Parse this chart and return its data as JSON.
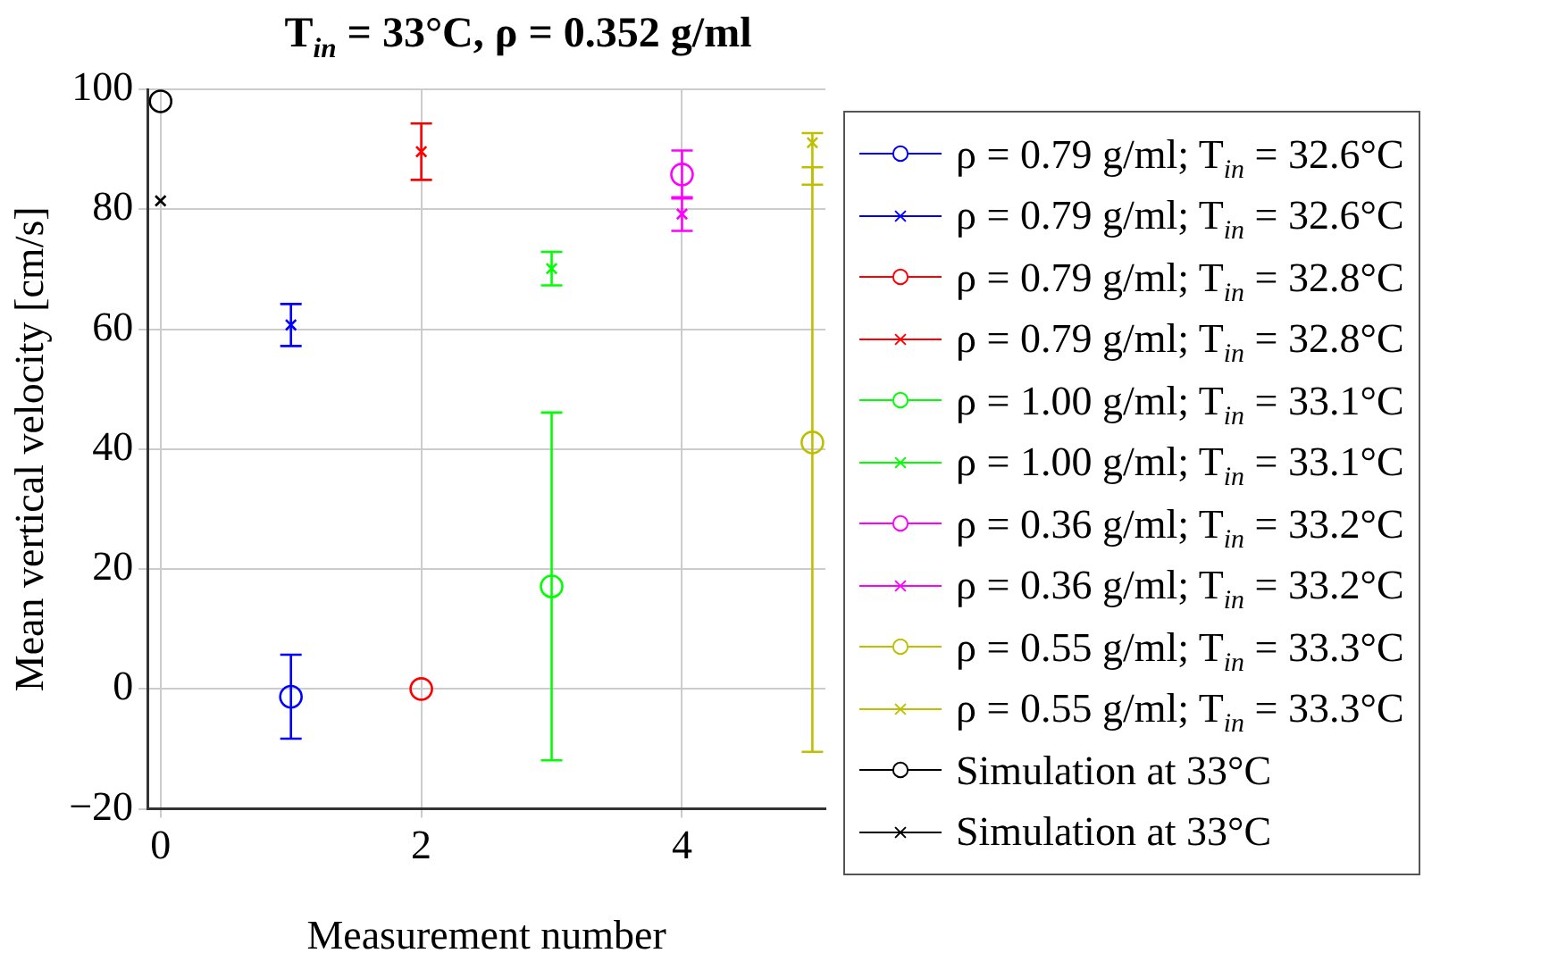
{
  "chart_data": {
    "type": "scatter",
    "title": "T$_{in}$ = 33°C, ρ = 0.352 g/ml",
    "xlabel": "Measurement number",
    "ylabel": "Mean vertical velocity [cm/s]",
    "xlim": [
      -0.1,
      5.1
    ],
    "xticks": [
      0,
      2,
      4
    ],
    "ylim": [
      -20,
      100
    ],
    "yticks": [
      -20,
      0,
      20,
      40,
      60,
      80,
      100
    ],
    "grid": true,
    "legend": "right",
    "series": [
      {
        "name": "ρ = 0.79 g/ml; T$_{in}$ = 32.6°C",
        "color": "#0000ff",
        "marker": "circle",
        "x": [
          1
        ],
        "values": [
          -1.3
        ],
        "errors": [
          7
        ]
      },
      {
        "name": "ρ = 0.79 g/ml; T$_{in}$ = 32.6°C",
        "color": "#0000ff",
        "marker": "cross",
        "x": [
          1
        ],
        "values": [
          60.7
        ],
        "errors": [
          3.5
        ]
      },
      {
        "name": "ρ = 0.79 g/ml; T$_{in}$ = 32.8°C",
        "color": "#ff0000",
        "marker": "circle",
        "x": [
          2
        ],
        "values": [
          0
        ],
        "errors": [
          null
        ]
      },
      {
        "name": "ρ = 0.79 g/ml; T$_{in}$ = 32.8°C",
        "color": "#ff0000",
        "marker": "cross",
        "x": [
          2
        ],
        "values": [
          89.6
        ],
        "errors": [
          4.7
        ]
      },
      {
        "name": "ρ = 1.00 g/ml; T$_{in}$ = 33.1°C",
        "color": "#00ff00",
        "marker": "circle",
        "x": [
          3
        ],
        "values": [
          17.1
        ],
        "errors": [
          29
        ]
      },
      {
        "name": "ρ = 1.00 g/ml; T$_{in}$ = 33.1°C",
        "color": "#00ff00",
        "marker": "cross",
        "x": [
          3
        ],
        "values": [
          70.1
        ],
        "errors": [
          2.8
        ]
      },
      {
        "name": "ρ = 0.36 g/ml; T$_{in}$ = 33.2°C",
        "color": "#ff00ff",
        "marker": "circle",
        "x": [
          4
        ],
        "values": [
          85.8
        ],
        "errors": [
          4
        ]
      },
      {
        "name": "ρ = 0.36 g/ml; T$_{in}$ = 33.2°C",
        "color": "#ff00ff",
        "marker": "cross",
        "x": [
          4
        ],
        "values": [
          79.2
        ],
        "errors": [
          2.8
        ]
      },
      {
        "name": "ρ = 0.55 g/ml; T$_{in}$ = 33.3°C",
        "color": "#bfbf00",
        "marker": "circle",
        "x": [
          5
        ],
        "values": [
          41.1
        ],
        "errors": [
          51.6
        ]
      },
      {
        "name": "ρ = 0.55 g/ml; T$_{in}$ = 33.3°C",
        "color": "#bfbf00",
        "marker": "cross",
        "x": [
          5
        ],
        "values": [
          91.1
        ],
        "errors": [
          [
            84.1,
            87
          ]
        ]
      },
      {
        "name": "Simulation at 33°C",
        "color": "#000000",
        "marker": "circle",
        "x": [
          0
        ],
        "values": [
          98
        ]
      },
      {
        "name": "Simulation at 33°C",
        "color": "#000000",
        "marker": "cross",
        "x": [
          0
        ],
        "values": [
          81.4
        ]
      }
    ]
  }
}
